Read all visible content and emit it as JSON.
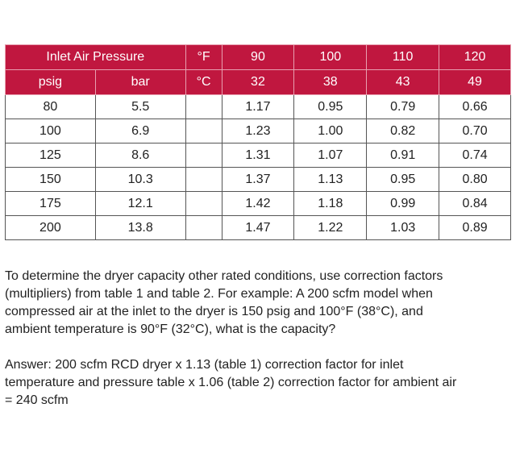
{
  "table": {
    "header": [
      {
        "pressure": "Inlet Air Pressure",
        "unit": "°F",
        "temps": [
          "90",
          "100",
          "110",
          "120"
        ]
      },
      {
        "psig": "psig",
        "bar": "bar",
        "unit": "°C",
        "temps": [
          "32",
          "38",
          "43",
          "49"
        ]
      }
    ],
    "rows": [
      {
        "psig": "80",
        "bar": "5.5",
        "factors": [
          "1.17",
          "0.95",
          "0.79",
          "0.66"
        ]
      },
      {
        "psig": "100",
        "bar": "6.9",
        "factors": [
          "1.23",
          "1.00",
          "0.82",
          "0.70"
        ]
      },
      {
        "psig": "125",
        "bar": "8.6",
        "factors": [
          "1.31",
          "1.07",
          "0.91",
          "0.74"
        ]
      },
      {
        "psig": "150",
        "bar": "10.3",
        "factors": [
          "1.37",
          "1.13",
          "0.95",
          "0.80"
        ]
      },
      {
        "psig": "175",
        "bar": "12.1",
        "factors": [
          "1.42",
          "1.18",
          "0.99",
          "0.84"
        ]
      },
      {
        "psig": "200",
        "bar": "13.8",
        "factors": [
          "1.47",
          "1.22",
          "1.03",
          "0.89"
        ]
      }
    ]
  },
  "paragraphs": [
    [
      "To determine the dryer capacity other rated conditions, use correction factors",
      "(multipliers) from table 1 and table 2. For example: A 200 scfm model when",
      "compressed air at the inlet to the dryer is 150 psig and 100°F (38°C), and",
      "ambient temperature is 90°F (32°C), what is the capacity?"
    ],
    [
      "Answer: 200 scfm RCD dryer x 1.13 (table 1) correction factor for inlet",
      "temperature and pressure table x 1.06 (table 2) correction factor for ambient air",
      "= 240 scfm"
    ]
  ]
}
